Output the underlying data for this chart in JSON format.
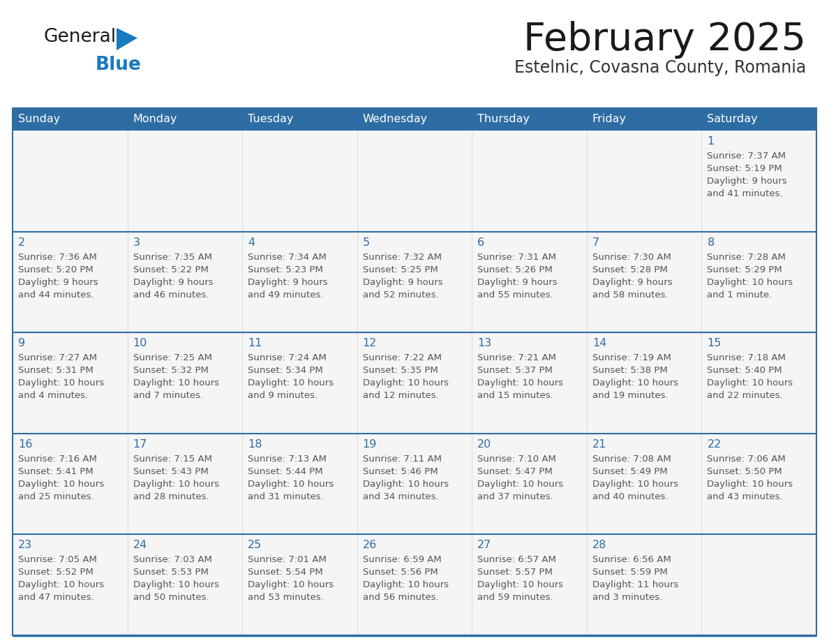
{
  "title": "February 2025",
  "subtitle": "Estelnic, Covasna County, Romania",
  "days_of_week": [
    "Sunday",
    "Monday",
    "Tuesday",
    "Wednesday",
    "Thursday",
    "Friday",
    "Saturday"
  ],
  "header_bg": "#2e6da4",
  "header_text": "#ffffff",
  "cell_bg": "#f5f5f5",
  "divider_color": "#2e6da4",
  "text_color": "#555555",
  "title_color": "#1a1a1a",
  "subtitle_color": "#333333",
  "day_num_color": "#2e6da4",
  "logo_black": "#1a1a1a",
  "logo_blue": "#1a7abf",
  "weeks": [
    [
      {
        "day": null,
        "info": null
      },
      {
        "day": null,
        "info": null
      },
      {
        "day": null,
        "info": null
      },
      {
        "day": null,
        "info": null
      },
      {
        "day": null,
        "info": null
      },
      {
        "day": null,
        "info": null
      },
      {
        "day": 1,
        "info": "Sunrise: 7:37 AM\nSunset: 5:19 PM\nDaylight: 9 hours\nand 41 minutes."
      }
    ],
    [
      {
        "day": 2,
        "info": "Sunrise: 7:36 AM\nSunset: 5:20 PM\nDaylight: 9 hours\nand 44 minutes."
      },
      {
        "day": 3,
        "info": "Sunrise: 7:35 AM\nSunset: 5:22 PM\nDaylight: 9 hours\nand 46 minutes."
      },
      {
        "day": 4,
        "info": "Sunrise: 7:34 AM\nSunset: 5:23 PM\nDaylight: 9 hours\nand 49 minutes."
      },
      {
        "day": 5,
        "info": "Sunrise: 7:32 AM\nSunset: 5:25 PM\nDaylight: 9 hours\nand 52 minutes."
      },
      {
        "day": 6,
        "info": "Sunrise: 7:31 AM\nSunset: 5:26 PM\nDaylight: 9 hours\nand 55 minutes."
      },
      {
        "day": 7,
        "info": "Sunrise: 7:30 AM\nSunset: 5:28 PM\nDaylight: 9 hours\nand 58 minutes."
      },
      {
        "day": 8,
        "info": "Sunrise: 7:28 AM\nSunset: 5:29 PM\nDaylight: 10 hours\nand 1 minute."
      }
    ],
    [
      {
        "day": 9,
        "info": "Sunrise: 7:27 AM\nSunset: 5:31 PM\nDaylight: 10 hours\nand 4 minutes."
      },
      {
        "day": 10,
        "info": "Sunrise: 7:25 AM\nSunset: 5:32 PM\nDaylight: 10 hours\nand 7 minutes."
      },
      {
        "day": 11,
        "info": "Sunrise: 7:24 AM\nSunset: 5:34 PM\nDaylight: 10 hours\nand 9 minutes."
      },
      {
        "day": 12,
        "info": "Sunrise: 7:22 AM\nSunset: 5:35 PM\nDaylight: 10 hours\nand 12 minutes."
      },
      {
        "day": 13,
        "info": "Sunrise: 7:21 AM\nSunset: 5:37 PM\nDaylight: 10 hours\nand 15 minutes."
      },
      {
        "day": 14,
        "info": "Sunrise: 7:19 AM\nSunset: 5:38 PM\nDaylight: 10 hours\nand 19 minutes."
      },
      {
        "day": 15,
        "info": "Sunrise: 7:18 AM\nSunset: 5:40 PM\nDaylight: 10 hours\nand 22 minutes."
      }
    ],
    [
      {
        "day": 16,
        "info": "Sunrise: 7:16 AM\nSunset: 5:41 PM\nDaylight: 10 hours\nand 25 minutes."
      },
      {
        "day": 17,
        "info": "Sunrise: 7:15 AM\nSunset: 5:43 PM\nDaylight: 10 hours\nand 28 minutes."
      },
      {
        "day": 18,
        "info": "Sunrise: 7:13 AM\nSunset: 5:44 PM\nDaylight: 10 hours\nand 31 minutes."
      },
      {
        "day": 19,
        "info": "Sunrise: 7:11 AM\nSunset: 5:46 PM\nDaylight: 10 hours\nand 34 minutes."
      },
      {
        "day": 20,
        "info": "Sunrise: 7:10 AM\nSunset: 5:47 PM\nDaylight: 10 hours\nand 37 minutes."
      },
      {
        "day": 21,
        "info": "Sunrise: 7:08 AM\nSunset: 5:49 PM\nDaylight: 10 hours\nand 40 minutes."
      },
      {
        "day": 22,
        "info": "Sunrise: 7:06 AM\nSunset: 5:50 PM\nDaylight: 10 hours\nand 43 minutes."
      }
    ],
    [
      {
        "day": 23,
        "info": "Sunrise: 7:05 AM\nSunset: 5:52 PM\nDaylight: 10 hours\nand 47 minutes."
      },
      {
        "day": 24,
        "info": "Sunrise: 7:03 AM\nSunset: 5:53 PM\nDaylight: 10 hours\nand 50 minutes."
      },
      {
        "day": 25,
        "info": "Sunrise: 7:01 AM\nSunset: 5:54 PM\nDaylight: 10 hours\nand 53 minutes."
      },
      {
        "day": 26,
        "info": "Sunrise: 6:59 AM\nSunset: 5:56 PM\nDaylight: 10 hours\nand 56 minutes."
      },
      {
        "day": 27,
        "info": "Sunrise: 6:57 AM\nSunset: 5:57 PM\nDaylight: 10 hours\nand 59 minutes."
      },
      {
        "day": 28,
        "info": "Sunrise: 6:56 AM\nSunset: 5:59 PM\nDaylight: 11 hours\nand 3 minutes."
      },
      {
        "day": null,
        "info": null
      }
    ]
  ]
}
